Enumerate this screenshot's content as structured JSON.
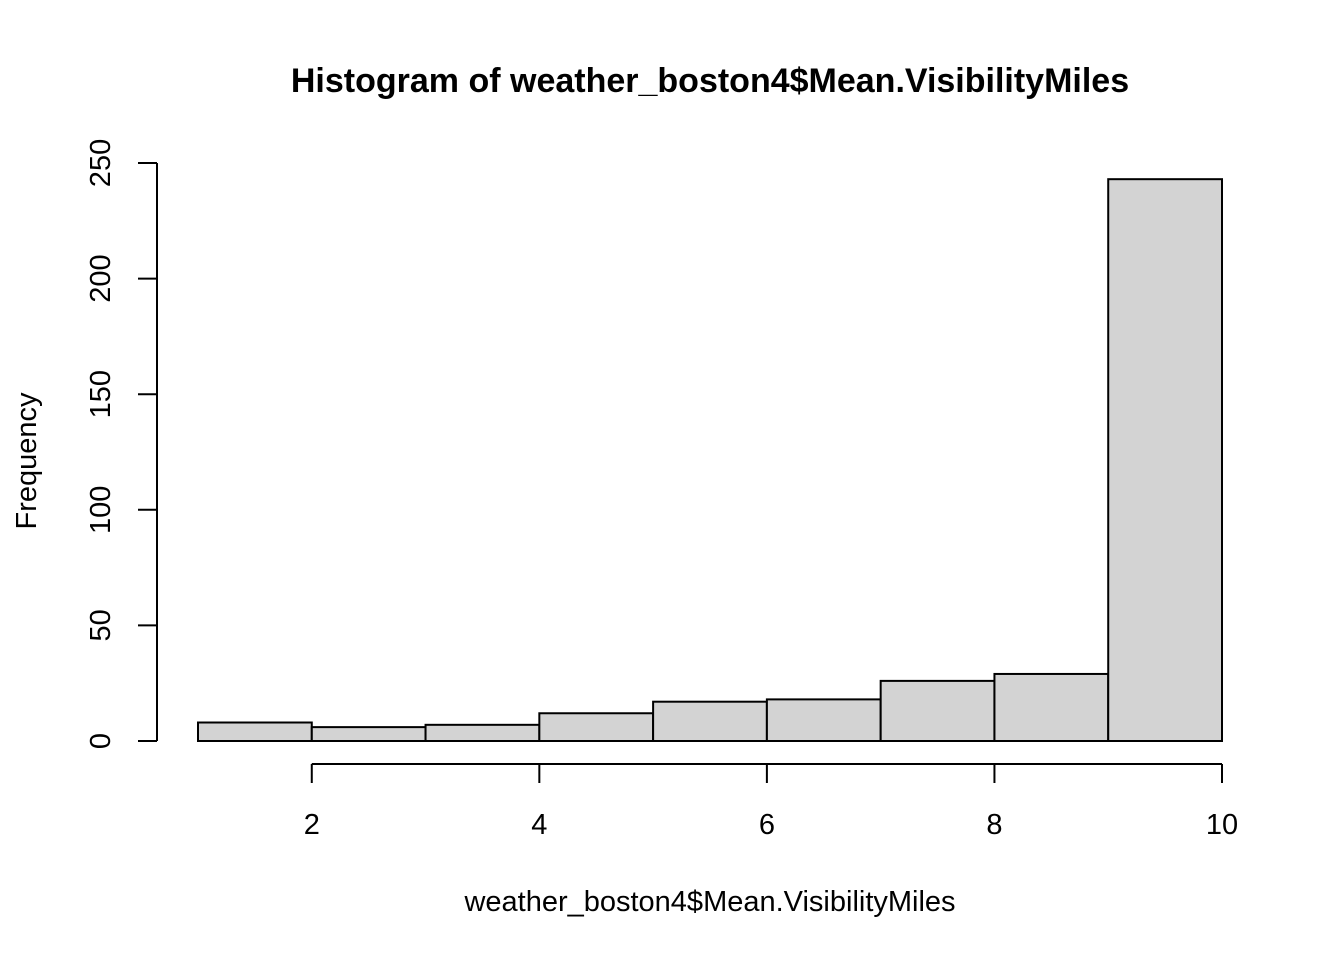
{
  "chart_data": {
    "type": "bar",
    "title": "Histogram of weather_boston4$Mean.VisibilityMiles",
    "xlabel": "weather_boston4$Mean.VisibilityMiles",
    "ylabel": "Frequency",
    "bins": [
      {
        "start": 1,
        "end": 2,
        "count": 8
      },
      {
        "start": 2,
        "end": 3,
        "count": 6
      },
      {
        "start": 3,
        "end": 4,
        "count": 7
      },
      {
        "start": 4,
        "end": 5,
        "count": 12
      },
      {
        "start": 5,
        "end": 6,
        "count": 17
      },
      {
        "start": 6,
        "end": 7,
        "count": 18
      },
      {
        "start": 7,
        "end": 8,
        "count": 26
      },
      {
        "start": 8,
        "end": 9,
        "count": 29
      },
      {
        "start": 9,
        "end": 10,
        "count": 243
      }
    ],
    "x_ticks": [
      "2",
      "4",
      "6",
      "8",
      "10"
    ],
    "y_ticks": [
      "0",
      "50",
      "100",
      "150",
      "200",
      "250"
    ],
    "xlim": [
      1,
      10
    ],
    "ylim": [
      0,
      250
    ],
    "bar_color": "#d3d3d3",
    "grid": false,
    "legend": "none"
  }
}
